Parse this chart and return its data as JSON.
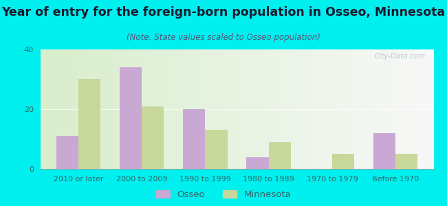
{
  "title": "Year of entry for the foreign-born population in Osseo, Minnesota",
  "subtitle": "(Note: State values scaled to Osseo population)",
  "categories": [
    "2010 or later",
    "2000 to 2009",
    "1990 to 1999",
    "1980 to 1989",
    "1970 to 1979",
    "Before 1970"
  ],
  "osseo_values": [
    11,
    34,
    20,
    4,
    0,
    12
  ],
  "minnesota_values": [
    30,
    21,
    13,
    9,
    5,
    5
  ],
  "osseo_color": "#c9a8d4",
  "minnesota_color": "#c8d89a",
  "background_color": "#00efef",
  "plot_bg_left": "#d8eecc",
  "plot_bg_right": "#f8f8f8",
  "ylim": [
    0,
    40
  ],
  "yticks": [
    0,
    20,
    40
  ],
  "bar_width": 0.35,
  "title_fontsize": 12.5,
  "subtitle_fontsize": 8.5,
  "tick_fontsize": 8,
  "legend_fontsize": 9.5,
  "title_color": "#1a1a2e",
  "subtitle_color": "#555577",
  "tick_color": "#336666",
  "watermark_color": "#b0c8c8"
}
